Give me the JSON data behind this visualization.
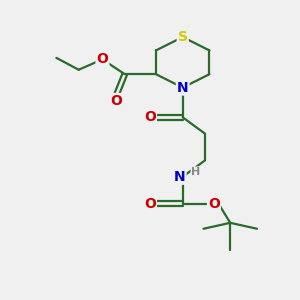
{
  "bg_color": "#f0f0f0",
  "atom_colors": {
    "C": "#000000",
    "N": "#0000cc",
    "O": "#cc0000",
    "S": "#cccc00",
    "H": "#888888"
  },
  "bond_color": "#2a6a2a",
  "line_width": 1.6,
  "figsize": [
    3.0,
    3.0
  ],
  "dpi": 100
}
